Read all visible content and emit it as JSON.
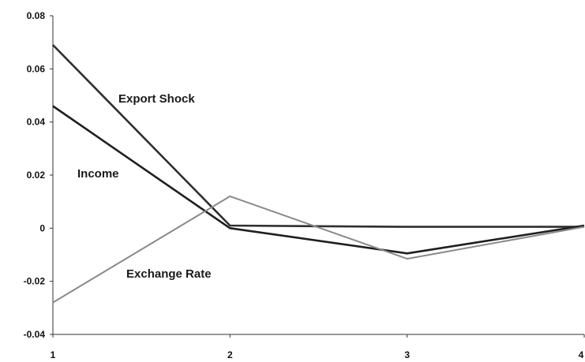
{
  "chart_data": {
    "type": "line",
    "title": "",
    "xlabel": "",
    "ylabel": "",
    "x": [
      1,
      2,
      3,
      4
    ],
    "xlim": [
      1,
      4
    ],
    "ylim": [
      -0.04,
      0.08
    ],
    "x_tick_labels": [
      "1",
      "2",
      "3",
      "4"
    ],
    "y_tick_labels": [
      "0.08",
      "0.06",
      "0.04",
      "0.02",
      "0",
      "-0.02",
      "-0.04"
    ],
    "y_tick_values": [
      0.08,
      0.06,
      0.04,
      0.02,
      0,
      -0.02,
      -0.04
    ],
    "grid": false,
    "legend": "none",
    "series": [
      {
        "name": "Export Shock",
        "values": [
          0.069,
          0.001,
          0.0005,
          0.0005
        ],
        "color": "#2e2e2e"
      },
      {
        "name": "Income",
        "values": [
          0.046,
          0.0,
          -0.0095,
          0.001
        ],
        "color": "#1f1f1f"
      },
      {
        "name": "Exchange Rate",
        "values": [
          -0.028,
          0.012,
          -0.0115,
          0.0005
        ],
        "color": "#8a8a8a"
      }
    ]
  }
}
